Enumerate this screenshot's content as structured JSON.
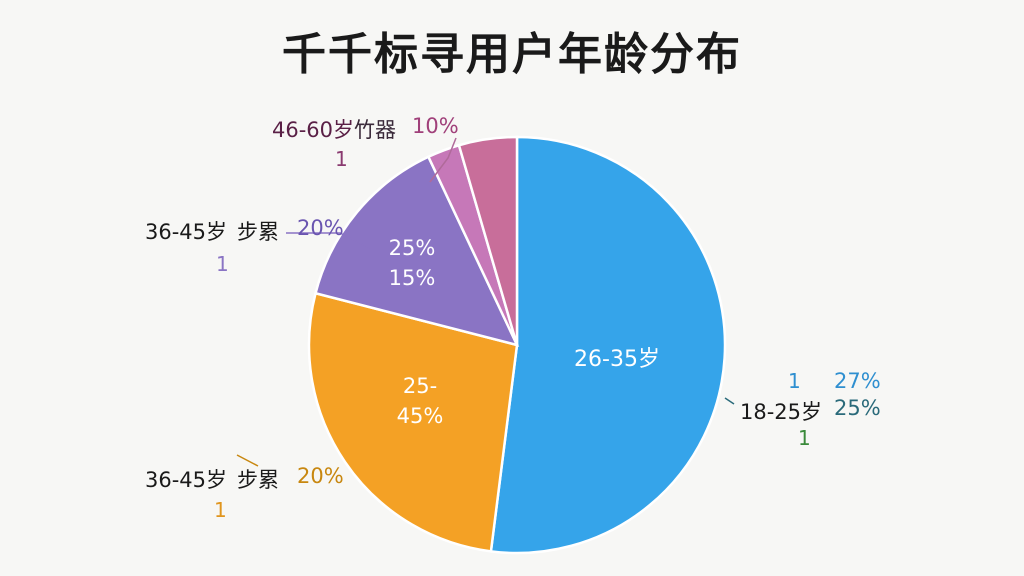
{
  "chart_data": {
    "type": "pie",
    "title": "千千标寻用户年龄分布",
    "colors": {
      "blue": "#35a4ea",
      "orange": "#f4a125",
      "purple": "#8a74c4",
      "magenta": "#c678b8",
      "pink": "#c86e9a"
    },
    "slices": [
      {
        "slice_label": "26-35岁",
        "value": 52,
        "color": "#35a4ea"
      },
      {
        "slice_label": "25-",
        "slice_label2": "45%",
        "value": 27,
        "color": "#f4a125"
      },
      {
        "slice_label": "25%",
        "slice_label2": "15%",
        "value": 14,
        "color": "#8a74c4"
      },
      {
        "slice_label": "",
        "value": 2.5,
        "color": "#c678b8"
      },
      {
        "slice_label": "",
        "value": 4.5,
        "color": "#c86e9a"
      }
    ],
    "callouts": {
      "top": {
        "name": "46-60岁",
        "mid": "竹器",
        "pct": "10%",
        "count": "1"
      },
      "upper_left": {
        "name": "36-45岁",
        "mid": "步累",
        "pct": "20%",
        "count": "1"
      },
      "lower_left": {
        "name": "36-45岁",
        "mid": "步累",
        "pct": "20%",
        "count": "1"
      },
      "right": {
        "name": "18-25岁",
        "top_count": "1",
        "pct_top": "27%",
        "pct": "25%",
        "count": "1"
      }
    }
  }
}
